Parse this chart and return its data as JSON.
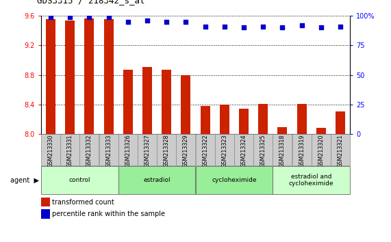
{
  "title": "GDS3315 / 218342_s_at",
  "samples": [
    "GSM213330",
    "GSM213331",
    "GSM213332",
    "GSM213333",
    "GSM213326",
    "GSM213327",
    "GSM213328",
    "GSM213329",
    "GSM213322",
    "GSM213323",
    "GSM213324",
    "GSM213325",
    "GSM213318",
    "GSM213319",
    "GSM213320",
    "GSM213321"
  ],
  "bar_values": [
    9.55,
    9.54,
    9.56,
    9.55,
    8.87,
    8.91,
    8.87,
    8.8,
    8.38,
    8.4,
    8.35,
    8.41,
    8.1,
    8.41,
    8.09,
    8.31
  ],
  "dot_values": [
    99,
    99,
    99,
    99,
    95,
    96,
    95,
    95,
    91,
    91,
    90,
    91,
    90,
    92,
    90,
    91
  ],
  "bar_color": "#cc2200",
  "dot_color": "#0000cc",
  "ylim_left": [
    8.0,
    9.6
  ],
  "ylim_right": [
    0,
    100
  ],
  "yticks_left": [
    8.0,
    8.4,
    8.8,
    9.2,
    9.6
  ],
  "yticks_right": [
    0,
    25,
    50,
    75,
    100
  ],
  "groups": [
    {
      "label": "control",
      "start": 0,
      "end": 4
    },
    {
      "label": "estradiol",
      "start": 4,
      "end": 8
    },
    {
      "label": "cycloheximide",
      "start": 8,
      "end": 12
    },
    {
      "label": "estradiol and\ncycloheximide",
      "start": 12,
      "end": 16
    }
  ],
  "group_colors": [
    "#ccffcc",
    "#99ee99",
    "#99ee99",
    "#ccffcc"
  ],
  "legend_bar_label": "transformed count",
  "legend_dot_label": "percentile rank within the sample",
  "agent_label": "agent",
  "bar_width": 0.5,
  "bg_color": "#ffffff",
  "plot_bg_color": "#ffffff",
  "tick_box_color": "#cccccc",
  "tick_box_edge_color": "#888888"
}
